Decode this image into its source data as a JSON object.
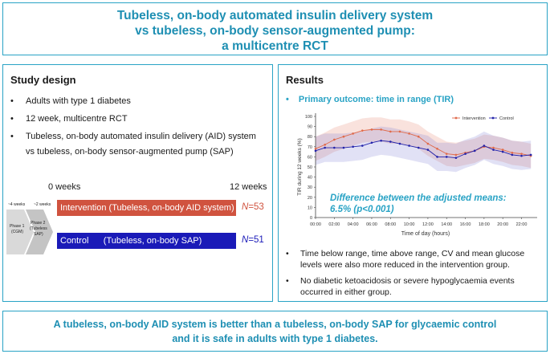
{
  "title": {
    "line1": "Tubeless, on-body automated insulin delivery system",
    "line2": "vs tubeless, on-body sensor-augmented pump:",
    "line3": "a multicentre RCT"
  },
  "study_design": {
    "heading": "Study design",
    "bullet_symbol": "•",
    "bullets": [
      "Adults with type 1 diabetes",
      "12 week, multicentre RCT",
      "Tubeless, on-body automated insulin delivery (AID) system"
    ],
    "bullet3_cont": "vs tubeless, on-body sensor-augmented pump (SAP)",
    "timeline": {
      "start": "0 weeks",
      "end": "12 weeks",
      "pre1": "~4 weeks",
      "pre2": "~2 weeks",
      "phase1_line1": "Phase 1",
      "phase1_line2": "(CGM)",
      "phase2_line1": "Phase 2",
      "phase2_line2": "(Tubeless",
      "phase2_line3": "SAP)"
    },
    "arms": [
      {
        "label": "Intervention (Tubeless, on-body AID system)",
        "n_prefix": "N",
        "n_value": "=53",
        "color": "#d0533f"
      },
      {
        "label": "Control      (Tubeless, on-body SAP)",
        "n_prefix": "N",
        "n_value": "=51",
        "color": "#1a1ab8"
      }
    ]
  },
  "results": {
    "heading": "Results",
    "primary_label": "Primary outcome: time in range (TIR)",
    "bullet_symbol": "•",
    "bullets": [
      "Time below range, time above range, CV and mean glucose levels were also more reduced in the intervention group.",
      "No diabetic ketoacidosis or severe hypoglycaemia events occurred in either group."
    ]
  },
  "chart_data": {
    "type": "line",
    "title": "",
    "xlabel": "Time of day (hours)",
    "ylabel": "TIR during 12 weeks (%)",
    "ylim": [
      0,
      100
    ],
    "yticks": [
      "0",
      "10",
      "20",
      "30",
      "40",
      "50",
      "60",
      "70",
      "80",
      "90",
      "100"
    ],
    "xticks": [
      "00:00",
      "02:00",
      "04:00",
      "06:00",
      "08:00",
      "10:00",
      "12:00",
      "14:00",
      "16:00",
      "18:00",
      "20:00",
      "22:00"
    ],
    "x": [
      0,
      1,
      2,
      3,
      4,
      5,
      6,
      7,
      8,
      9,
      10,
      11,
      12,
      13,
      14,
      15,
      16,
      17,
      18,
      19,
      20,
      21,
      22,
      23
    ],
    "series": [
      {
        "name": "Intervention",
        "color": "#e06a4a",
        "values": [
          68,
          72,
          77,
          80,
          83,
          86,
          87,
          87,
          85,
          85,
          83,
          80,
          73,
          68,
          63,
          62,
          64,
          66,
          70,
          69,
          67,
          64,
          63,
          61
        ],
        "band": 12
      },
      {
        "name": "Control",
        "color": "#2222aa",
        "values": [
          66,
          69,
          69,
          69,
          70,
          71,
          74,
          76,
          75,
          73,
          71,
          69,
          67,
          60,
          60,
          59,
          63,
          66,
          71,
          67,
          65,
          62,
          61,
          62
        ],
        "band": 14
      }
    ],
    "annotation_line1": "Difference between the adjusted means:",
    "annotation_line2": "6.5% (p<0.001)"
  },
  "conclusion": {
    "line1": "A tubeless, on-body AID system is better than a tubeless, on-body SAP for glycaemic control",
    "line2": "and it is safe in adults with type 1 diabetes."
  }
}
